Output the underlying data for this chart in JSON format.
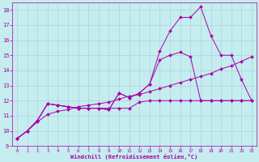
{
  "xlabel": "Windchill (Refroidissement éolien,°C)",
  "xlim": [
    -0.5,
    23.5
  ],
  "ylim": [
    9,
    18.5
  ],
  "xticks": [
    0,
    1,
    2,
    3,
    4,
    5,
    6,
    7,
    8,
    9,
    10,
    11,
    12,
    13,
    14,
    15,
    16,
    17,
    18,
    19,
    20,
    21,
    22,
    23
  ],
  "yticks": [
    9,
    10,
    11,
    12,
    13,
    14,
    15,
    16,
    17,
    18
  ],
  "bg_color": "#c5ecef",
  "grid_color": "#aad4dc",
  "line_color": "#aa00aa",
  "line1_x": [
    0,
    1,
    2,
    3,
    4,
    5,
    6,
    7,
    8,
    9,
    10,
    11,
    12,
    13,
    14,
    15,
    16,
    17,
    18,
    19,
    20,
    21,
    22,
    23
  ],
  "line1_y": [
    9.5,
    10.0,
    10.6,
    11.1,
    11.3,
    11.4,
    11.6,
    11.7,
    11.8,
    11.9,
    12.1,
    12.3,
    12.4,
    12.6,
    12.8,
    13.0,
    13.2,
    13.4,
    13.6,
    13.8,
    14.1,
    14.3,
    14.6,
    14.9
  ],
  "line2_x": [
    0,
    1,
    2,
    3,
    4,
    5,
    6,
    7,
    8,
    9,
    10,
    11,
    12,
    13,
    14,
    15,
    16,
    17,
    18,
    19,
    20,
    21,
    22,
    23
  ],
  "line2_y": [
    9.5,
    10.0,
    10.7,
    11.8,
    11.7,
    11.6,
    11.5,
    11.5,
    11.5,
    11.5,
    11.5,
    11.5,
    11.9,
    12.0,
    12.0,
    12.0,
    12.0,
    12.0,
    12.0,
    12.0,
    12.0,
    12.0,
    12.0,
    12.0
  ],
  "line3_x": [
    0,
    1,
    2,
    3,
    4,
    5,
    6,
    7,
    8,
    9,
    10,
    11,
    12,
    13,
    14,
    15,
    16,
    17,
    18,
    19,
    20,
    21,
    22,
    23
  ],
  "line3_y": [
    9.5,
    10.0,
    10.7,
    11.8,
    11.7,
    11.6,
    11.5,
    11.5,
    11.5,
    11.4,
    12.5,
    12.2,
    12.5,
    13.1,
    14.7,
    15.0,
    15.2,
    14.9,
    12.0,
    12.0,
    12.0,
    12.0,
    12.0,
    12.0
  ],
  "line4_x": [
    0,
    1,
    2,
    3,
    4,
    5,
    6,
    7,
    8,
    9,
    10,
    11,
    12,
    13,
    14,
    15,
    16,
    17,
    18,
    19,
    20,
    21,
    22,
    23
  ],
  "line4_y": [
    9.5,
    10.0,
    10.7,
    11.8,
    11.7,
    11.6,
    11.5,
    11.5,
    11.5,
    11.4,
    12.5,
    12.2,
    12.5,
    13.1,
    15.3,
    16.6,
    17.5,
    17.5,
    18.2,
    16.3,
    15.0,
    15.0,
    13.4,
    12.0
  ]
}
